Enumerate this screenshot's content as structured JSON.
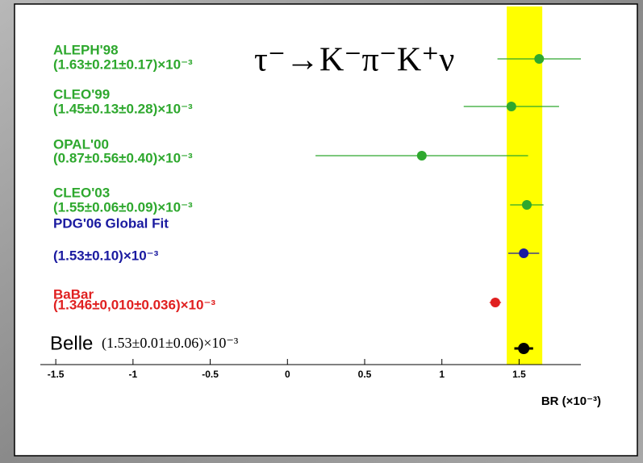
{
  "chart_data": {
    "type": "forest",
    "title": "τ⁻→K⁻π⁻K⁺ν",
    "x_label": "BR (×10⁻³)",
    "xlim": [
      -1.6,
      1.9
    ],
    "xticks": [
      -1.5,
      -1,
      -0.5,
      0,
      0.5,
      1,
      1.5
    ],
    "band": {
      "from": 1.42,
      "to": 1.65,
      "color": "#ffff00"
    },
    "entries": [
      {
        "name": "ALEPH'98",
        "label": "(1.63±0.21±0.17)×10⁻³",
        "color": "#2ea82e",
        "value": 1.63,
        "stat": 0.21,
        "syst": 0.17
      },
      {
        "name": "CLEO'99",
        "label": "(1.45±0.13±0.28)×10⁻³",
        "color": "#2ea82e",
        "value": 1.45,
        "stat": 0.13,
        "syst": 0.28
      },
      {
        "name": "OPAL'00",
        "label": "(0.87±0.56±0.40)×10⁻³",
        "color": "#2ea82e",
        "value": 0.87,
        "stat": 0.56,
        "syst": 0.4
      },
      {
        "name": "CLEO'03",
        "label": "(1.55±0.06±0.09)×10⁻³",
        "color": "#2ea82e",
        "value": 1.55,
        "stat": 0.06,
        "syst": 0.09
      },
      {
        "name": "PDG'06 Global Fit",
        "label": "(1.53±0.10)×10⁻³",
        "color": "#1a1aa0",
        "value": 1.53,
        "stat": 0.1,
        "syst": null
      },
      {
        "name": "BaBar",
        "label": "(1.346±0,010±0.036)×10⁻³",
        "color": "#e02020",
        "value": 1.346,
        "stat": 0.01,
        "syst": 0.036
      },
      {
        "name": "Belle",
        "label": "(1.53±0.01±0.06)×10⁻³",
        "color": "#000000",
        "value": 1.53,
        "stat": 0.01,
        "syst": 0.06
      }
    ]
  }
}
